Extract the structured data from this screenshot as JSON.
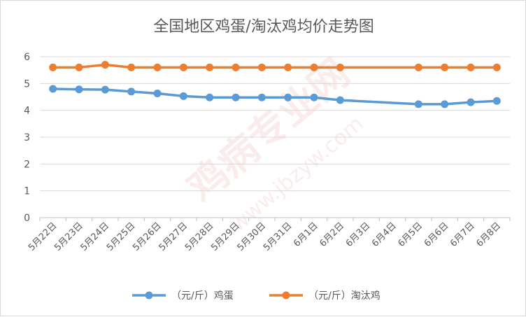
{
  "chart_data": {
    "type": "line",
    "title": "全国地区鸡蛋/淘汰鸡均价走势图",
    "categories": [
      "5月22日",
      "5月23日",
      "5月24日",
      "5月25日",
      "5月26日",
      "5月27日",
      "5月28日",
      "5月29日",
      "5月30日",
      "5月31日",
      "6月1日",
      "6月2日",
      "6月3日",
      "6月4日",
      "6月5日",
      "6月6日",
      "6月7日",
      "6月8日"
    ],
    "series": [
      {
        "name": "（元/斤）鸡蛋",
        "color": "#5b9bd5",
        "values": [
          4.8,
          4.78,
          4.77,
          4.7,
          4.63,
          4.53,
          4.48,
          4.48,
          4.48,
          4.48,
          4.48,
          4.38,
          null,
          null,
          4.23,
          4.23,
          4.3,
          4.35
        ]
      },
      {
        "name": "（元/斤）淘汰鸡",
        "color": "#ed7d31",
        "values": [
          5.6,
          5.6,
          5.7,
          5.6,
          5.6,
          5.6,
          5.6,
          5.6,
          5.6,
          5.6,
          5.6,
          5.6,
          null,
          null,
          5.6,
          5.6,
          5.6,
          5.6
        ]
      }
    ],
    "ylim": [
      0,
      6
    ],
    "yticks": [
      0,
      1,
      2,
      3,
      4,
      5,
      6
    ],
    "xlabel": "",
    "ylabel": "",
    "grid": true,
    "legend_position": "bottom",
    "connect_gaps": true
  },
  "watermark": {
    "text": "鸡病专业网",
    "sub": "www.jbzyw.com"
  }
}
